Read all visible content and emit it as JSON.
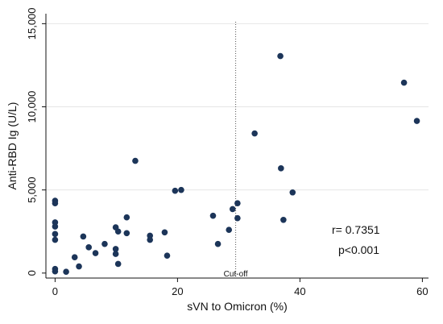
{
  "chart_data": {
    "type": "scatter",
    "xlabel": "sVN to Omicron (%)",
    "ylabel": "Anti-RBD Ig (U/L)",
    "xlim": [
      -1.5,
      61
    ],
    "ylim": [
      -300,
      15600
    ],
    "xticks": [
      0,
      20,
      40,
      60
    ],
    "xtick_labels": [
      "0",
      "20",
      "40",
      "60"
    ],
    "yticks": [
      0,
      5000,
      10000,
      15000
    ],
    "ytick_labels": [
      "0",
      "5,000",
      "10,000",
      "15,000"
    ],
    "grid": "horizontal",
    "cutoff": {
      "x": 29.5,
      "label": "Cut-off"
    },
    "annotations": [
      "r= 0.7351",
      "p<0.001"
    ],
    "marker_color": "#1c3559",
    "points": [
      {
        "x": 0,
        "y": 4350
      },
      {
        "x": 0,
        "y": 4200
      },
      {
        "x": 0,
        "y": 3050
      },
      {
        "x": 0,
        "y": 2800
      },
      {
        "x": 0,
        "y": 2350
      },
      {
        "x": 0,
        "y": 2000
      },
      {
        "x": 0,
        "y": 250
      },
      {
        "x": 0,
        "y": 100
      },
      {
        "x": 1.8,
        "y": 80
      },
      {
        "x": 3.2,
        "y": 950
      },
      {
        "x": 3.9,
        "y": 400
      },
      {
        "x": 4.6,
        "y": 2200
      },
      {
        "x": 5.5,
        "y": 1550
      },
      {
        "x": 6.6,
        "y": 1200
      },
      {
        "x": 8.1,
        "y": 1750
      },
      {
        "x": 9.9,
        "y": 2750
      },
      {
        "x": 9.9,
        "y": 1450
      },
      {
        "x": 9.9,
        "y": 1150
      },
      {
        "x": 10.3,
        "y": 2500
      },
      {
        "x": 10.3,
        "y": 550
      },
      {
        "x": 11.7,
        "y": 3350
      },
      {
        "x": 11.7,
        "y": 2400
      },
      {
        "x": 13.1,
        "y": 6750
      },
      {
        "x": 15.5,
        "y": 2250
      },
      {
        "x": 15.5,
        "y": 2000
      },
      {
        "x": 17.9,
        "y": 2450
      },
      {
        "x": 18.3,
        "y": 1050
      },
      {
        "x": 19.6,
        "y": 4950
      },
      {
        "x": 20.6,
        "y": 5000
      },
      {
        "x": 25.8,
        "y": 3450
      },
      {
        "x": 26.6,
        "y": 1750
      },
      {
        "x": 28.4,
        "y": 2600
      },
      {
        "x": 29.0,
        "y": 3850
      },
      {
        "x": 29.8,
        "y": 4200
      },
      {
        "x": 29.8,
        "y": 3300
      },
      {
        "x": 32.6,
        "y": 8400
      },
      {
        "x": 36.8,
        "y": 13050
      },
      {
        "x": 36.9,
        "y": 6300
      },
      {
        "x": 37.3,
        "y": 3200
      },
      {
        "x": 38.8,
        "y": 4850
      },
      {
        "x": 57.0,
        "y": 11450
      },
      {
        "x": 59.1,
        "y": 9150
      }
    ]
  }
}
